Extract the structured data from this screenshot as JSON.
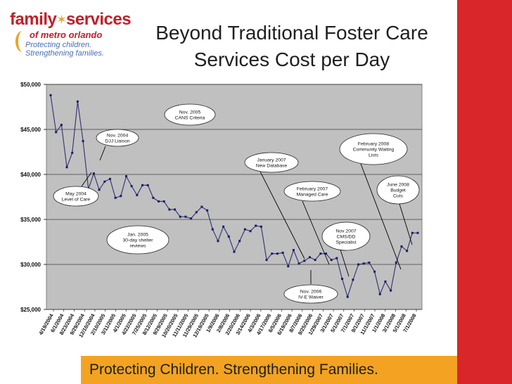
{
  "title": {
    "line1": "Beyond Traditional Foster Care",
    "line2": "Services Cost per Day"
  },
  "logo": {
    "word1": "family",
    "word2": "services",
    "line2": "of metro orlando",
    "tagline1": "Protecting children.",
    "tagline2": "Strengthening families."
  },
  "footer": {
    "text": "Protecting Children. Strengthening Families."
  },
  "colors": {
    "accent_red": "#d8262b",
    "footer_orange": "#f3a321",
    "plot_bg": "#c0c0c0",
    "line": "#3a3a7a"
  },
  "chart_data": {
    "type": "line",
    "title": "",
    "xlabel": "",
    "ylabel": "",
    "ylim": [
      25000,
      50000
    ],
    "yticks": [
      "$50,000",
      "$45,000",
      "$40,000",
      "$35,000",
      "$30,000",
      "$25,000"
    ],
    "ytick_values": [
      50000,
      45000,
      40000,
      35000,
      30000,
      25000
    ],
    "xticks": [
      "4/19/2004",
      "6/1/2004",
      "8/23/2004",
      "9/29/2004",
      "12/10/2004",
      "2/10/2005",
      "3/11/2005",
      "4/1/2005",
      "4/22/2005",
      "7/25/2005",
      "8/12/2005",
      "9/29/2005",
      "10/20/2005",
      "11/11/2005",
      "11/29/2005",
      "12/19/2005",
      "1/9/2006",
      "2/8/2006",
      "2/20/2006",
      "3/14/2006",
      "4/3/2006",
      "4/17/2006",
      "6/5/2006",
      "6/19/2006",
      "8/7/2006",
      "9/25/2006",
      "1/29/2007",
      "3/1/2007",
      "5/1/2007",
      "7/1/2007",
      "9/1/2007",
      "11/1/2007",
      "1/1/2008",
      "3/1/2008",
      "5/1/2008",
      "7/1/2008"
    ],
    "series": [
      {
        "name": "Cost per Day",
        "values": [
          48800,
          44700,
          45500,
          40800,
          42400,
          48100,
          43700,
          38400,
          40100,
          38300,
          39200,
          39500,
          37400,
          37600,
          39800,
          38700,
          37700,
          38800,
          38800,
          37400,
          37000,
          37000,
          36100,
          36100,
          35300,
          35300,
          35100,
          35800,
          36400,
          36000,
          33900,
          32600,
          34200,
          33100,
          31400,
          32600,
          33900,
          33700,
          34300,
          34200,
          30500,
          31200,
          31200,
          31300,
          29800,
          31600,
          30100,
          30400,
          30800,
          30500,
          31200,
          31200,
          30500,
          30700,
          28400,
          26400,
          28300,
          30000,
          30100,
          30200,
          29200,
          26700,
          28100,
          27100,
          30200,
          32000,
          31500,
          33500,
          33500
        ]
      }
    ],
    "annotations": [
      {
        "lines": [
          "Nov. 2005",
          "CANS Criteria"
        ]
      },
      {
        "lines": [
          "Nov. 2004",
          "DJJ Liaison"
        ]
      },
      {
        "lines": [
          "May 2004",
          "Level of Care"
        ]
      },
      {
        "lines": [
          "Jan. 2005",
          "30-day shelter",
          "reviews"
        ]
      },
      {
        "lines": [
          "January 2007",
          "New Database"
        ]
      },
      {
        "lines": [
          "February 2007",
          "Managed Care"
        ]
      },
      {
        "lines": [
          "February 2008",
          "Community Waiting",
          "Lists"
        ]
      },
      {
        "lines": [
          "June 2008",
          "Budget",
          "Cuts"
        ]
      },
      {
        "lines": [
          "Nov 2007",
          "CMS/DD",
          "Specialist"
        ]
      },
      {
        "lines": [
          "Nov. 2006",
          "IV-E Waiver"
        ]
      }
    ]
  }
}
